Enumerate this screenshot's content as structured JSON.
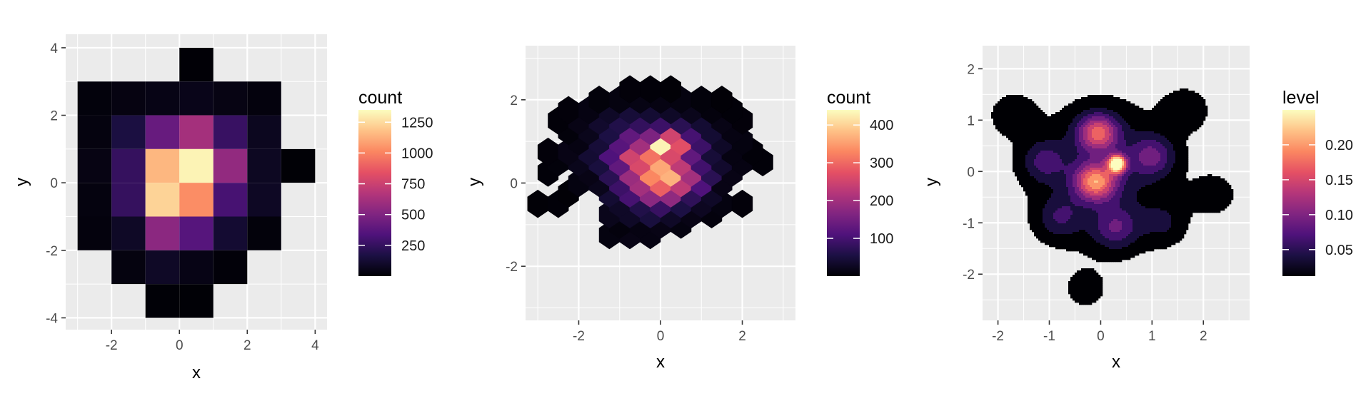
{
  "chart_data": [
    {
      "type": "heatmap",
      "subtype": "bin2d",
      "xlabel": "x",
      "ylabel": "y",
      "x_ticks": [
        "-2",
        "0",
        "2",
        "4"
      ],
      "y_ticks": [
        "-4",
        "-2",
        "0",
        "2",
        "4"
      ],
      "xlim": [
        -3.35,
        4.35
      ],
      "ylim": [
        -4.35,
        4.4
      ],
      "bin_width": 1,
      "bin_height": 2,
      "x_bin_starts": [
        -3,
        -2,
        -1,
        0,
        1,
        2,
        3
      ],
      "y_bin_starts": [
        -4,
        -3,
        -2,
        -1,
        0,
        1,
        2,
        3
      ],
      "cells": [
        {
          "x": 0,
          "y": 3,
          "count": 4
        },
        {
          "x": -3,
          "y": 2,
          "count": 20
        },
        {
          "x": -2,
          "y": 2,
          "count": 35
        },
        {
          "x": -1,
          "y": 2,
          "count": 45
        },
        {
          "x": 0,
          "y": 2,
          "count": 55
        },
        {
          "x": 1,
          "y": 2,
          "count": 40
        },
        {
          "x": 2,
          "y": 2,
          "count": 25
        },
        {
          "x": -3,
          "y": 1,
          "count": 30
        },
        {
          "x": -2,
          "y": 1,
          "count": 160
        },
        {
          "x": -1,
          "y": 1,
          "count": 420
        },
        {
          "x": 0,
          "y": 1,
          "count": 620
        },
        {
          "x": 1,
          "y": 1,
          "count": 260
        },
        {
          "x": 2,
          "y": 1,
          "count": 70
        },
        {
          "x": -3,
          "y": 0,
          "count": 40
        },
        {
          "x": -2,
          "y": 0,
          "count": 250
        },
        {
          "x": -1,
          "y": 0,
          "count": 1150
        },
        {
          "x": 0,
          "y": 0,
          "count": 1320
        },
        {
          "x": 1,
          "y": 0,
          "count": 560
        },
        {
          "x": 2,
          "y": 0,
          "count": 80
        },
        {
          "x": 3,
          "y": 0,
          "count": 6
        },
        {
          "x": -3,
          "y": -1,
          "count": 30
        },
        {
          "x": -2,
          "y": -1,
          "count": 250
        },
        {
          "x": -1,
          "y": -1,
          "count": 1230
        },
        {
          "x": 0,
          "y": -1,
          "count": 1030
        },
        {
          "x": 1,
          "y": -1,
          "count": 310
        },
        {
          "x": 2,
          "y": -1,
          "count": 85
        },
        {
          "x": -3,
          "y": -2,
          "count": 25
        },
        {
          "x": -2,
          "y": -2,
          "count": 90
        },
        {
          "x": -1,
          "y": -2,
          "count": 540
        },
        {
          "x": 0,
          "y": -2,
          "count": 360
        },
        {
          "x": 1,
          "y": -2,
          "count": 120
        },
        {
          "x": 2,
          "y": -2,
          "count": 18
        },
        {
          "x": -2,
          "y": -3,
          "count": 30
        },
        {
          "x": -1,
          "y": -3,
          "count": 90
        },
        {
          "x": 0,
          "y": -3,
          "count": 45
        },
        {
          "x": 1,
          "y": -3,
          "count": 12
        },
        {
          "x": -1,
          "y": -4,
          "count": 8
        },
        {
          "x": 0,
          "y": -4,
          "count": 6
        }
      ],
      "legend": {
        "title": "count",
        "labels": [
          "1250",
          "1000",
          "750",
          "500",
          "250"
        ],
        "values": [
          1250,
          1000,
          750,
          500,
          250
        ],
        "range": [
          0,
          1350
        ]
      }
    },
    {
      "type": "heatmap",
      "subtype": "hexbin",
      "xlabel": "x",
      "ylabel": "y",
      "x_ticks": [
        "-2",
        "0",
        "2"
      ],
      "y_ticks": [
        "-2",
        "0",
        "2"
      ],
      "xlim": [
        -3.3,
        3.3
      ],
      "ylim": [
        -3.3,
        3.3
      ],
      "hex_dx": 0.5,
      "hex_dy": 0.5,
      "hexes": [
        {
          "i": -5,
          "j": -5,
          "count": 10
        },
        {
          "i": -3,
          "j": -5,
          "count": 15
        },
        {
          "i": -1,
          "j": -5,
          "count": 12
        },
        {
          "i": -4,
          "j": -4,
          "count": 8
        },
        {
          "i": -2,
          "j": -4,
          "count": 12
        },
        {
          "i": 0,
          "j": -4,
          "count": 15
        },
        {
          "i": 2,
          "j": -4,
          "count": 10
        },
        {
          "i": -5,
          "j": -3,
          "count": 20
        },
        {
          "i": -3,
          "j": -3,
          "count": 30
        },
        {
          "i": -1,
          "j": -3,
          "count": 50
        },
        {
          "i": 1,
          "j": -3,
          "count": 30
        },
        {
          "i": 3,
          "j": -3,
          "count": 15
        },
        {
          "i": 5,
          "j": -3,
          "count": 8
        },
        {
          "i": -12,
          "j": -2,
          "count": 3
        },
        {
          "i": -10,
          "j": -2,
          "count": 4
        },
        {
          "i": -4,
          "j": -2,
          "count": 30
        },
        {
          "i": -2,
          "j": -2,
          "count": 60
        },
        {
          "i": 0,
          "j": -2,
          "count": 85
        },
        {
          "i": 2,
          "j": -2,
          "count": 55
        },
        {
          "i": 4,
          "j": -2,
          "count": 25
        },
        {
          "i": 6,
          "j": -2,
          "count": 10
        },
        {
          "i": 8,
          "j": -2,
          "count": 5
        },
        {
          "i": -9,
          "j": -1,
          "count": 3
        },
        {
          "i": -5,
          "j": -1,
          "count": 40
        },
        {
          "i": -3,
          "j": -1,
          "count": 100
        },
        {
          "i": -1,
          "j": -1,
          "count": 175
        },
        {
          "i": 1,
          "j": -1,
          "count": 180
        },
        {
          "i": 3,
          "j": -1,
          "count": 75
        },
        {
          "i": 5,
          "j": -1,
          "count": 30
        },
        {
          "i": -8,
          "j": 0,
          "count": 10
        },
        {
          "i": -6,
          "j": 0,
          "count": 20
        },
        {
          "i": -4,
          "j": 0,
          "count": 90
        },
        {
          "i": -2,
          "j": 0,
          "count": 200
        },
        {
          "i": 0,
          "j": 0,
          "count": 290
        },
        {
          "i": 2,
          "j": 0,
          "count": 230
        },
        {
          "i": 4,
          "j": 0,
          "count": 110
        },
        {
          "i": 6,
          "j": 0,
          "count": 15
        },
        {
          "i": -11,
          "j": 1,
          "count": 4
        },
        {
          "i": -7,
          "j": 1,
          "count": 15
        },
        {
          "i": -5,
          "j": 1,
          "count": 70
        },
        {
          "i": -3,
          "j": 1,
          "count": 190
        },
        {
          "i": -1,
          "j": 1,
          "count": 330
        },
        {
          "i": 1,
          "j": 1,
          "count": 370
        },
        {
          "i": 3,
          "j": 1,
          "count": 200
        },
        {
          "i": 5,
          "j": 1,
          "count": 70
        },
        {
          "i": 7,
          "j": 1,
          "count": 15
        },
        {
          "i": -10,
          "j": 2,
          "count": 6
        },
        {
          "i": -8,
          "j": 2,
          "count": 20
        },
        {
          "i": -6,
          "j": 2,
          "count": 50
        },
        {
          "i": -4,
          "j": 2,
          "count": 130
        },
        {
          "i": -2,
          "j": 2,
          "count": 260
        },
        {
          "i": 0,
          "j": 2,
          "count": 360
        },
        {
          "i": 2,
          "j": 2,
          "count": 230
        },
        {
          "i": 4,
          "j": 2,
          "count": 95
        },
        {
          "i": 6,
          "j": 2,
          "count": 35
        },
        {
          "i": 8,
          "j": 2,
          "count": 12
        },
        {
          "i": 10,
          "j": 2,
          "count": 4
        },
        {
          "i": -11,
          "j": 3,
          "count": 5
        },
        {
          "i": -9,
          "j": 3,
          "count": 15
        },
        {
          "i": -7,
          "j": 3,
          "count": 40
        },
        {
          "i": -5,
          "j": 3,
          "count": 110
        },
        {
          "i": -3,
          "j": 3,
          "count": 250
        },
        {
          "i": -1,
          "j": 3,
          "count": 310
        },
        {
          "i": 1,
          "j": 3,
          "count": 260
        },
        {
          "i": 3,
          "j": 3,
          "count": 130
        },
        {
          "i": 5,
          "j": 3,
          "count": 45
        },
        {
          "i": 7,
          "j": 3,
          "count": 12
        },
        {
          "i": 9,
          "j": 3,
          "count": 4
        },
        {
          "i": -8,
          "j": 4,
          "count": 12
        },
        {
          "i": -6,
          "j": 4,
          "count": 45
        },
        {
          "i": -4,
          "j": 4,
          "count": 120
        },
        {
          "i": -2,
          "j": 4,
          "count": 200
        },
        {
          "i": 0,
          "j": 4,
          "count": 430
        },
        {
          "i": 2,
          "j": 4,
          "count": 270
        },
        {
          "i": 4,
          "j": 4,
          "count": 90
        },
        {
          "i": 6,
          "j": 4,
          "count": 30
        },
        {
          "i": 8,
          "j": 4,
          "count": 10
        },
        {
          "i": -9,
          "j": 5,
          "count": 6
        },
        {
          "i": -7,
          "j": 5,
          "count": 20
        },
        {
          "i": -5,
          "j": 5,
          "count": 55
        },
        {
          "i": -3,
          "j": 5,
          "count": 130
        },
        {
          "i": -1,
          "j": 5,
          "count": 160
        },
        {
          "i": 1,
          "j": 5,
          "count": 250
        },
        {
          "i": 3,
          "j": 5,
          "count": 100
        },
        {
          "i": 5,
          "j": 5,
          "count": 40
        },
        {
          "i": 7,
          "j": 5,
          "count": 12
        },
        {
          "i": -10,
          "j": 6,
          "count": 4
        },
        {
          "i": -8,
          "j": 6,
          "count": 15
        },
        {
          "i": -6,
          "j": 6,
          "count": 35
        },
        {
          "i": -4,
          "j": 6,
          "count": 60
        },
        {
          "i": -2,
          "j": 6,
          "count": 80
        },
        {
          "i": 0,
          "j": 6,
          "count": 90
        },
        {
          "i": 2,
          "j": 6,
          "count": 70
        },
        {
          "i": 4,
          "j": 6,
          "count": 40
        },
        {
          "i": 6,
          "j": 6,
          "count": 15
        },
        {
          "i": 8,
          "j": 6,
          "count": 5
        },
        {
          "i": -9,
          "j": 7,
          "count": 5
        },
        {
          "i": -7,
          "j": 7,
          "count": 12
        },
        {
          "i": -5,
          "j": 7,
          "count": 30
        },
        {
          "i": -3,
          "j": 7,
          "count": 45
        },
        {
          "i": -1,
          "j": 7,
          "count": 40
        },
        {
          "i": 1,
          "j": 7,
          "count": 30
        },
        {
          "i": 3,
          "j": 7,
          "count": 20
        },
        {
          "i": 5,
          "j": 7,
          "count": 8
        },
        {
          "i": 7,
          "j": 7,
          "count": 4
        },
        {
          "i": -6,
          "j": 8,
          "count": 6
        },
        {
          "i": -4,
          "j": 8,
          "count": 10
        },
        {
          "i": -2,
          "j": 8,
          "count": 14
        },
        {
          "i": 0,
          "j": 8,
          "count": 12
        },
        {
          "i": 2,
          "j": 8,
          "count": 10
        },
        {
          "i": 4,
          "j": 8,
          "count": 6
        },
        {
          "i": 6,
          "j": 8,
          "count": 3
        },
        {
          "i": -3,
          "j": 9,
          "count": 5
        },
        {
          "i": -1,
          "j": 9,
          "count": 4
        },
        {
          "i": 1,
          "j": 9,
          "count": 3
        }
      ],
      "legend": {
        "title": "count",
        "labels": [
          "400",
          "300",
          "200",
          "100"
        ],
        "values": [
          400,
          300,
          200,
          100
        ],
        "range": [
          0,
          440
        ]
      }
    },
    {
      "type": "heatmap",
      "subtype": "density_2d_filled",
      "xlabel": "x",
      "ylabel": "y",
      "x_ticks": [
        "-2",
        "-1",
        "0",
        "1",
        "2"
      ],
      "y_ticks": [
        "-2",
        "-1",
        "0",
        "1",
        "2"
      ],
      "xlim": [
        -2.3,
        2.9
      ],
      "ylim": [
        -2.9,
        2.45
      ],
      "level_max": 0.25,
      "peaks": [
        {
          "x": 0.32,
          "y": 0.15,
          "height": 0.25
        },
        {
          "x": -0.1,
          "y": -0.2,
          "height": 0.17
        },
        {
          "x": -0.05,
          "y": 0.75,
          "height": 0.15
        },
        {
          "x": 1.0,
          "y": 0.3,
          "height": 0.08
        },
        {
          "x": -1.1,
          "y": 0.2,
          "height": 0.06
        },
        {
          "x": 0.3,
          "y": -1.1,
          "height": 0.07
        },
        {
          "x": 1.65,
          "y": 1.2,
          "height": 0.03
        },
        {
          "x": 2.2,
          "y": -0.45,
          "height": 0.025
        },
        {
          "x": -0.3,
          "y": -2.3,
          "height": 0.02
        },
        {
          "x": -1.7,
          "y": 1.1,
          "height": 0.03
        },
        {
          "x": -0.8,
          "y": -0.9,
          "height": 0.05
        },
        {
          "x": 1.2,
          "y": -1.0,
          "height": 0.035
        }
      ],
      "legend": {
        "title": "level",
        "labels": [
          "0.20",
          "0.15",
          "0.10",
          "0.05"
        ],
        "values": [
          0.2,
          0.15,
          0.1,
          0.05
        ],
        "range": [
          0.012,
          0.25
        ]
      }
    }
  ]
}
